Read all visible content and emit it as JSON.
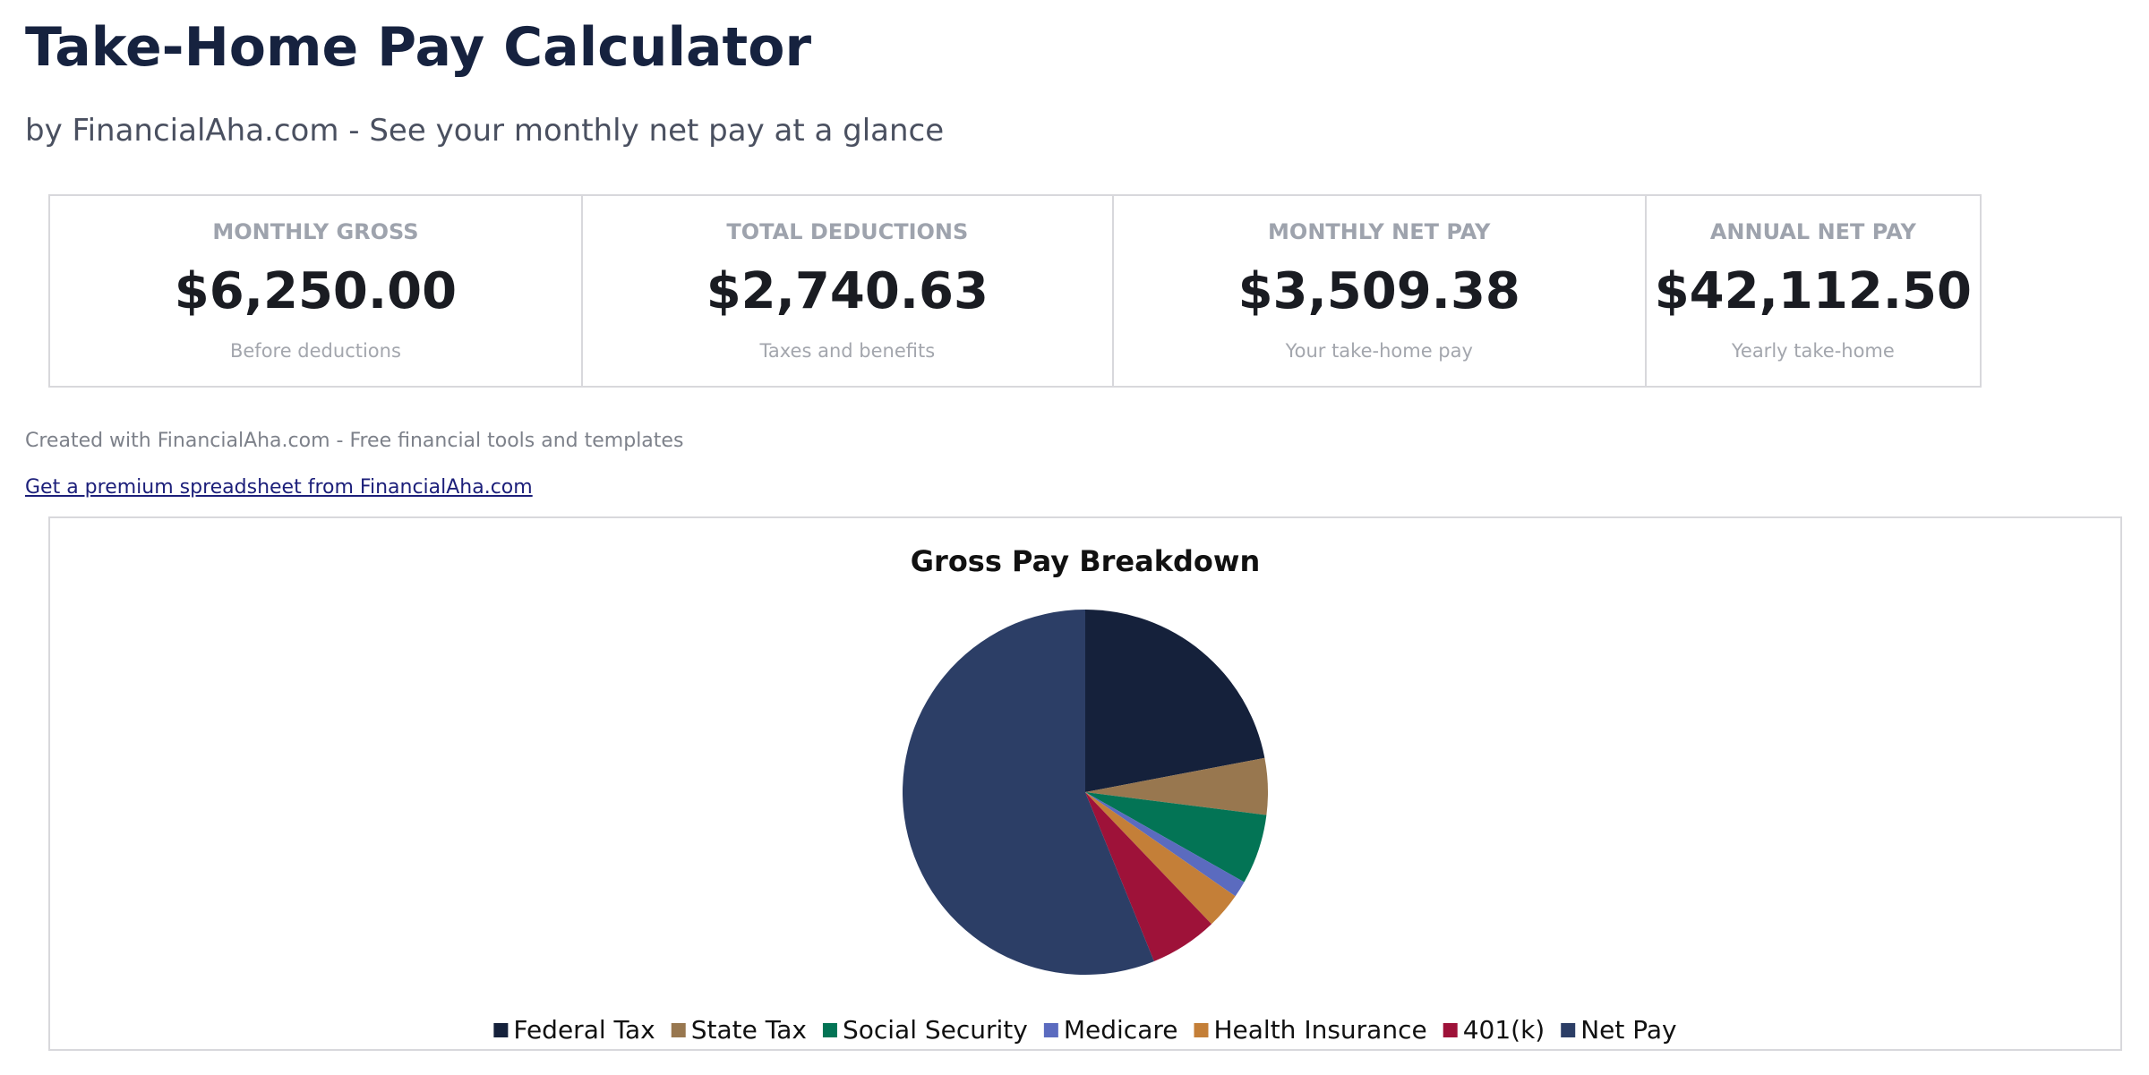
{
  "header": {
    "title": "Take-Home Pay Calculator",
    "subtitle": "by FinancialAha.com - See your monthly net pay at a glance"
  },
  "cards": [
    {
      "label": "MONTHLY GROSS",
      "value": "$6,250.00",
      "note": "Before deductions"
    },
    {
      "label": "TOTAL DEDUCTIONS",
      "value": "$2,740.63",
      "note": "Taxes and benefits"
    },
    {
      "label": "MONTHLY NET PAY",
      "value": "$3,509.38",
      "note": "Your take-home pay"
    },
    {
      "label": "ANNUAL NET PAY",
      "value": "$42,112.50",
      "note": "Yearly take-home"
    }
  ],
  "footer": {
    "credit": "Created with FinancialAha.com - Free financial tools and templates",
    "link": "Get a premium spreadsheet from FinancialAha.com"
  },
  "chart_data": {
    "type": "pie",
    "title": "Gross Pay Breakdown",
    "categories": [
      "Federal Tax",
      "State Tax",
      "Social Security",
      "Medicare",
      "Health Insurance",
      "401(k)",
      "Net Pay"
    ],
    "values": [
      1375,
      312.5,
      387.5,
      90.63,
      200,
      375,
      3509.38
    ],
    "colors": [
      "#15213b",
      "#98774f",
      "#037455",
      "#5b6bbf",
      "#c47f38",
      "#9e1239",
      "#2c3e66"
    ]
  }
}
